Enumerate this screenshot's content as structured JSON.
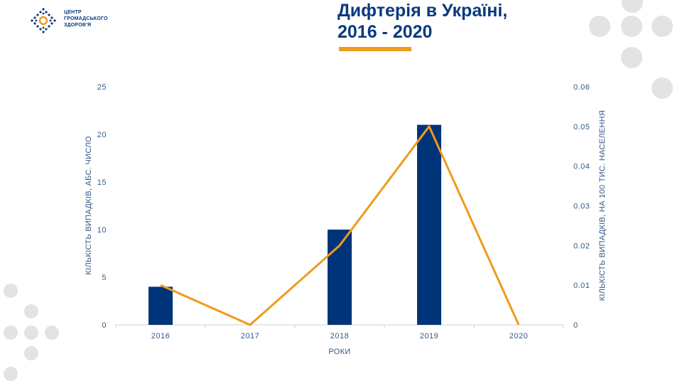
{
  "logo": {
    "lines": [
      "ЦЕНТР",
      "ГРОМАДСЬКОГО",
      "ЗДОРОВ'Я"
    ]
  },
  "title": {
    "line1": "Дифтерія в Україні,",
    "line2": "2016 - 2020"
  },
  "colors": {
    "navy": "#0b3a7e",
    "bar": "#003478",
    "line": "#ee9b1d",
    "axis_text": "#335a86",
    "decor_dots": "#e3e3e5"
  },
  "chart_data": {
    "type": "bar",
    "categories": [
      "2016",
      "2017",
      "2018",
      "2019",
      "2020"
    ],
    "series": [
      {
        "type": "bar",
        "axis": "left",
        "values": [
          4,
          0,
          10,
          21,
          0
        ]
      },
      {
        "type": "line",
        "axis": "right",
        "values": [
          0.01,
          0,
          0.02,
          0.05,
          0
        ]
      }
    ],
    "xlabel": "РОКИ",
    "ylabel": "КІЛЬКІСТЬ ВИПАДКІВ, АБС. ЧИСЛО",
    "ylabel_right": "КІЛЬКІСТЬ ВИПАДКІВ, НА 100 ТИС. НАСЕЛЕННЯ",
    "ylim": [
      0,
      25
    ],
    "ylim_right": [
      0,
      0.06
    ],
    "yticks": [
      "0",
      "5",
      "10",
      "15",
      "20",
      "25"
    ],
    "yticks_right": [
      "0",
      "0.01",
      "0.02",
      "0.03",
      "0.04",
      "0.05",
      "0.06"
    ],
    "grid": false,
    "legend": "none"
  }
}
